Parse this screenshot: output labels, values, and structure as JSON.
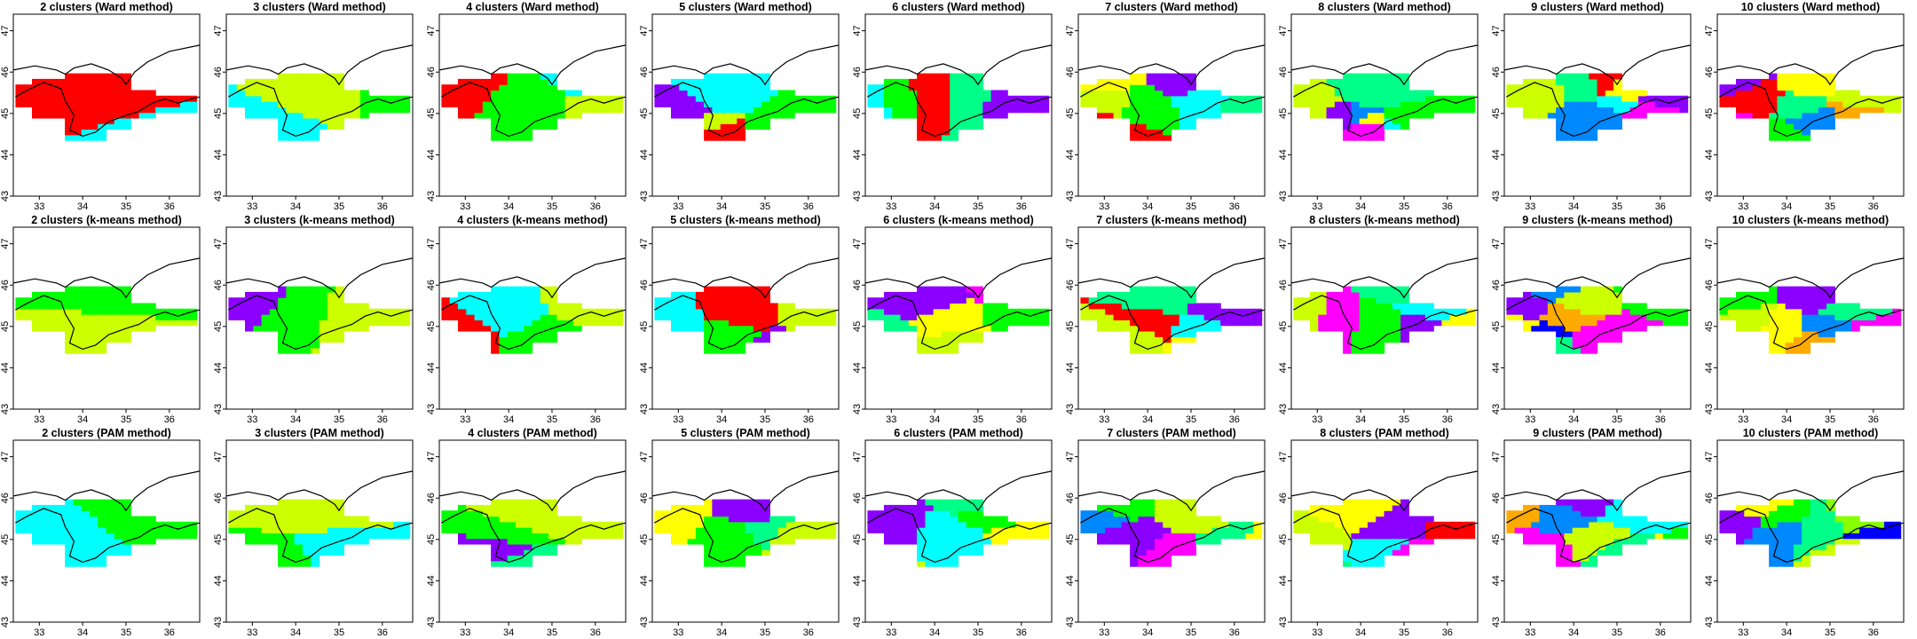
{
  "figure": {
    "methods": [
      "Ward",
      "k-means",
      "PAM"
    ],
    "cluster_counts": [
      2,
      3,
      4,
      5,
      6,
      7,
      8,
      9,
      10
    ]
  },
  "chart_data": {
    "type": "heatmap",
    "description_of_encoding": "Each panel is a spatial map (longitude on x, latitude on y) of grid cells colored by cluster membership; a black coastline outline is overlaid.",
    "x_ticks": [
      "33",
      "34",
      "35",
      "36"
    ],
    "y_ticks": [
      "43",
      "44",
      "45",
      "46",
      "47"
    ],
    "xlim": [
      32.4,
      36.7
    ],
    "ylim": [
      43.0,
      47.4
    ],
    "grid": false,
    "palette": [
      "#ff0000",
      "#00ffff",
      "#00ff00",
      "#ccff00",
      "#8b00ff",
      "#00ff88",
      "#ffff00",
      "#ff00ff",
      "#0088ff",
      "#ffaa00",
      "#0000ff",
      "#88ff00"
    ],
    "panels": [
      {
        "method": "Ward",
        "k": 2,
        "title": "2 clusters (Ward method)"
      },
      {
        "method": "Ward",
        "k": 3,
        "title": "3 clusters (Ward method)"
      },
      {
        "method": "Ward",
        "k": 4,
        "title": "4 clusters (Ward method)"
      },
      {
        "method": "Ward",
        "k": 5,
        "title": "5 clusters (Ward method)"
      },
      {
        "method": "Ward",
        "k": 6,
        "title": "6 clusters (Ward method)"
      },
      {
        "method": "Ward",
        "k": 7,
        "title": "7 clusters (Ward method)"
      },
      {
        "method": "Ward",
        "k": 8,
        "title": "8 clusters (Ward method)"
      },
      {
        "method": "Ward",
        "k": 9,
        "title": "9 clusters (Ward method)"
      },
      {
        "method": "Ward",
        "k": 10,
        "title": "10 clusters (Ward method)"
      },
      {
        "method": "k-means",
        "k": 2,
        "title": "2 clusters (k-means method)"
      },
      {
        "method": "k-means",
        "k": 3,
        "title": "3 clusters (k-means method)"
      },
      {
        "method": "k-means",
        "k": 4,
        "title": "4 clusters (k-means method)"
      },
      {
        "method": "k-means",
        "k": 5,
        "title": "5 clusters (k-means method)"
      },
      {
        "method": "k-means",
        "k": 6,
        "title": "6 clusters (k-means method)"
      },
      {
        "method": "k-means",
        "k": 7,
        "title": "7 clusters (k-means method)"
      },
      {
        "method": "k-means",
        "k": 8,
        "title": "8 clusters (k-means method)"
      },
      {
        "method": "k-means",
        "k": 9,
        "title": "9 clusters (k-means method)"
      },
      {
        "method": "k-means",
        "k": 10,
        "title": "10 clusters (k-means method)"
      },
      {
        "method": "PAM",
        "k": 2,
        "title": "2 clusters (PAM method)"
      },
      {
        "method": "PAM",
        "k": 3,
        "title": "3 clusters (PAM method)"
      },
      {
        "method": "PAM",
        "k": 4,
        "title": "4 clusters (PAM method)"
      },
      {
        "method": "PAM",
        "k": 5,
        "title": "5 clusters (PAM method)"
      },
      {
        "method": "PAM",
        "k": 6,
        "title": "6 clusters (PAM method)"
      },
      {
        "method": "PAM",
        "k": 7,
        "title": "7 clusters (PAM method)"
      },
      {
        "method": "PAM",
        "k": 8,
        "title": "8 clusters (PAM method)"
      },
      {
        "method": "PAM",
        "k": 9,
        "title": "9 clusters (PAM method)"
      },
      {
        "method": "PAM",
        "k": 10,
        "title": "10 clusters (PAM method)"
      }
    ]
  }
}
